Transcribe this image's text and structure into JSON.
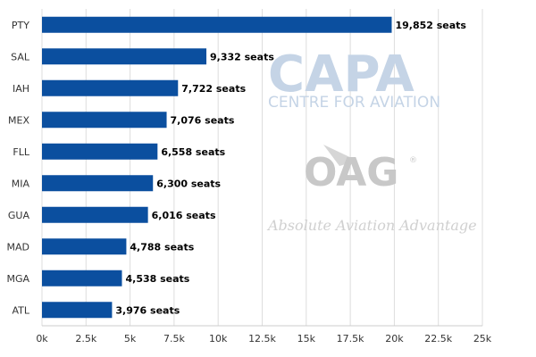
{
  "chart_data": {
    "type": "bar",
    "orientation": "horizontal",
    "categories": [
      "PTY",
      "SAL",
      "IAH",
      "MEX",
      "FLL",
      "MIA",
      "GUA",
      "MAD",
      "MGA",
      "ATL"
    ],
    "values": [
      19852,
      9332,
      7722,
      7076,
      6558,
      6300,
      6016,
      4788,
      4538,
      3976
    ],
    "data_labels": [
      "19,852 seats",
      "9,332 seats",
      "7,722 seats",
      "7,076 seats",
      "6,558 seats",
      "6,300 seats",
      "6,016 seats",
      "4,788 seats",
      "4,538 seats",
      "3,976 seats"
    ],
    "x_ticks": [
      "0k",
      "2.5k",
      "5k",
      "7.5k",
      "10k",
      "12.5k",
      "15k",
      "17.5k",
      "20k",
      "22.5k",
      "25k"
    ],
    "xlim": [
      0,
      25000
    ],
    "grid": "vertical",
    "title": "",
    "xlabel": "",
    "ylabel": "",
    "bar_color": "#0b4f9f"
  },
  "watermarks": {
    "capa_logo": "CAPA",
    "capa_tagline": "CENTRE FOR AVIATION",
    "oag_logo": "OAG",
    "oag_registered": "®",
    "oag_tagline": "Absolute Aviation Advantage"
  }
}
